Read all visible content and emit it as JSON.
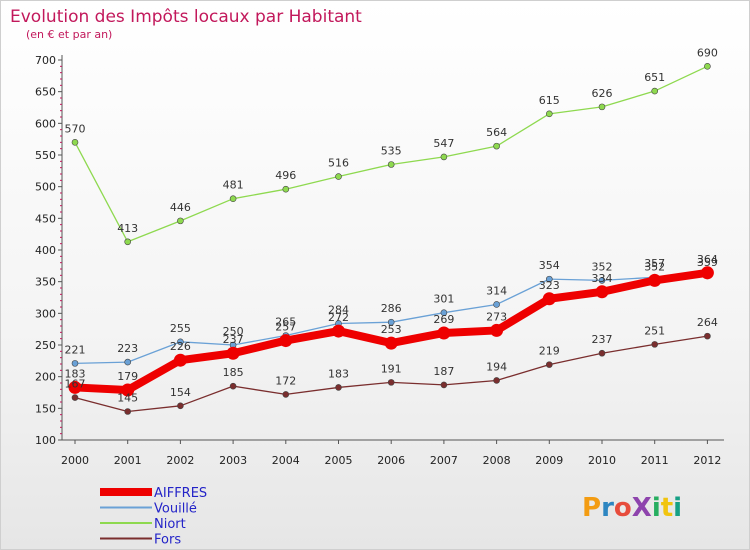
{
  "header": {
    "title": "Evolution des Impôts locaux par Habitant",
    "subtitle": "(en € et par an)"
  },
  "logo": {
    "text": "ProXiti",
    "colors": [
      "#f39c12",
      "#2e86c1",
      "#e74c3c",
      "#8e44ad",
      "#27ae60",
      "#f1c40f",
      "#16a085"
    ]
  },
  "chart_data": {
    "type": "line",
    "title": "Evolution des Impôts locaux par Habitant",
    "subtitle": "(en € et par an)",
    "xlabel": "",
    "ylabel": "",
    "x": [
      "2000",
      "2001",
      "2002",
      "2003",
      "2004",
      "2005",
      "2006",
      "2007",
      "2008",
      "2009",
      "2010",
      "2011",
      "2012"
    ],
    "ylim": [
      100,
      700
    ],
    "yticks": [
      100,
      150,
      200,
      250,
      300,
      350,
      400,
      450,
      500,
      550,
      600,
      650,
      700
    ],
    "grid": false,
    "legend_position": "bottom-left",
    "series": [
      {
        "name": "AIFFRES",
        "color": "#ee0000",
        "width": 8,
        "marker": 6,
        "values": [
          183,
          179,
          226,
          237,
          257,
          272,
          253,
          269,
          273,
          323,
          334,
          352,
          364
        ]
      },
      {
        "name": "Vouillé",
        "color": "#6aa1d6",
        "width": 1.3,
        "marker": 3,
        "values": [
          221,
          223,
          255,
          250,
          265,
          284,
          286,
          301,
          314,
          354,
          352,
          357,
          359
        ]
      },
      {
        "name": "Niort",
        "color": "#8ed94f",
        "width": 1.3,
        "marker": 3,
        "values": [
          570,
          413,
          446,
          481,
          496,
          516,
          535,
          547,
          564,
          615,
          626,
          651,
          690
        ]
      },
      {
        "name": "Fors",
        "color": "#7a2e2e",
        "width": 1.3,
        "marker": 3,
        "values": [
          167,
          145,
          154,
          185,
          172,
          183,
          191,
          187,
          194,
          219,
          237,
          251,
          264
        ]
      }
    ]
  }
}
